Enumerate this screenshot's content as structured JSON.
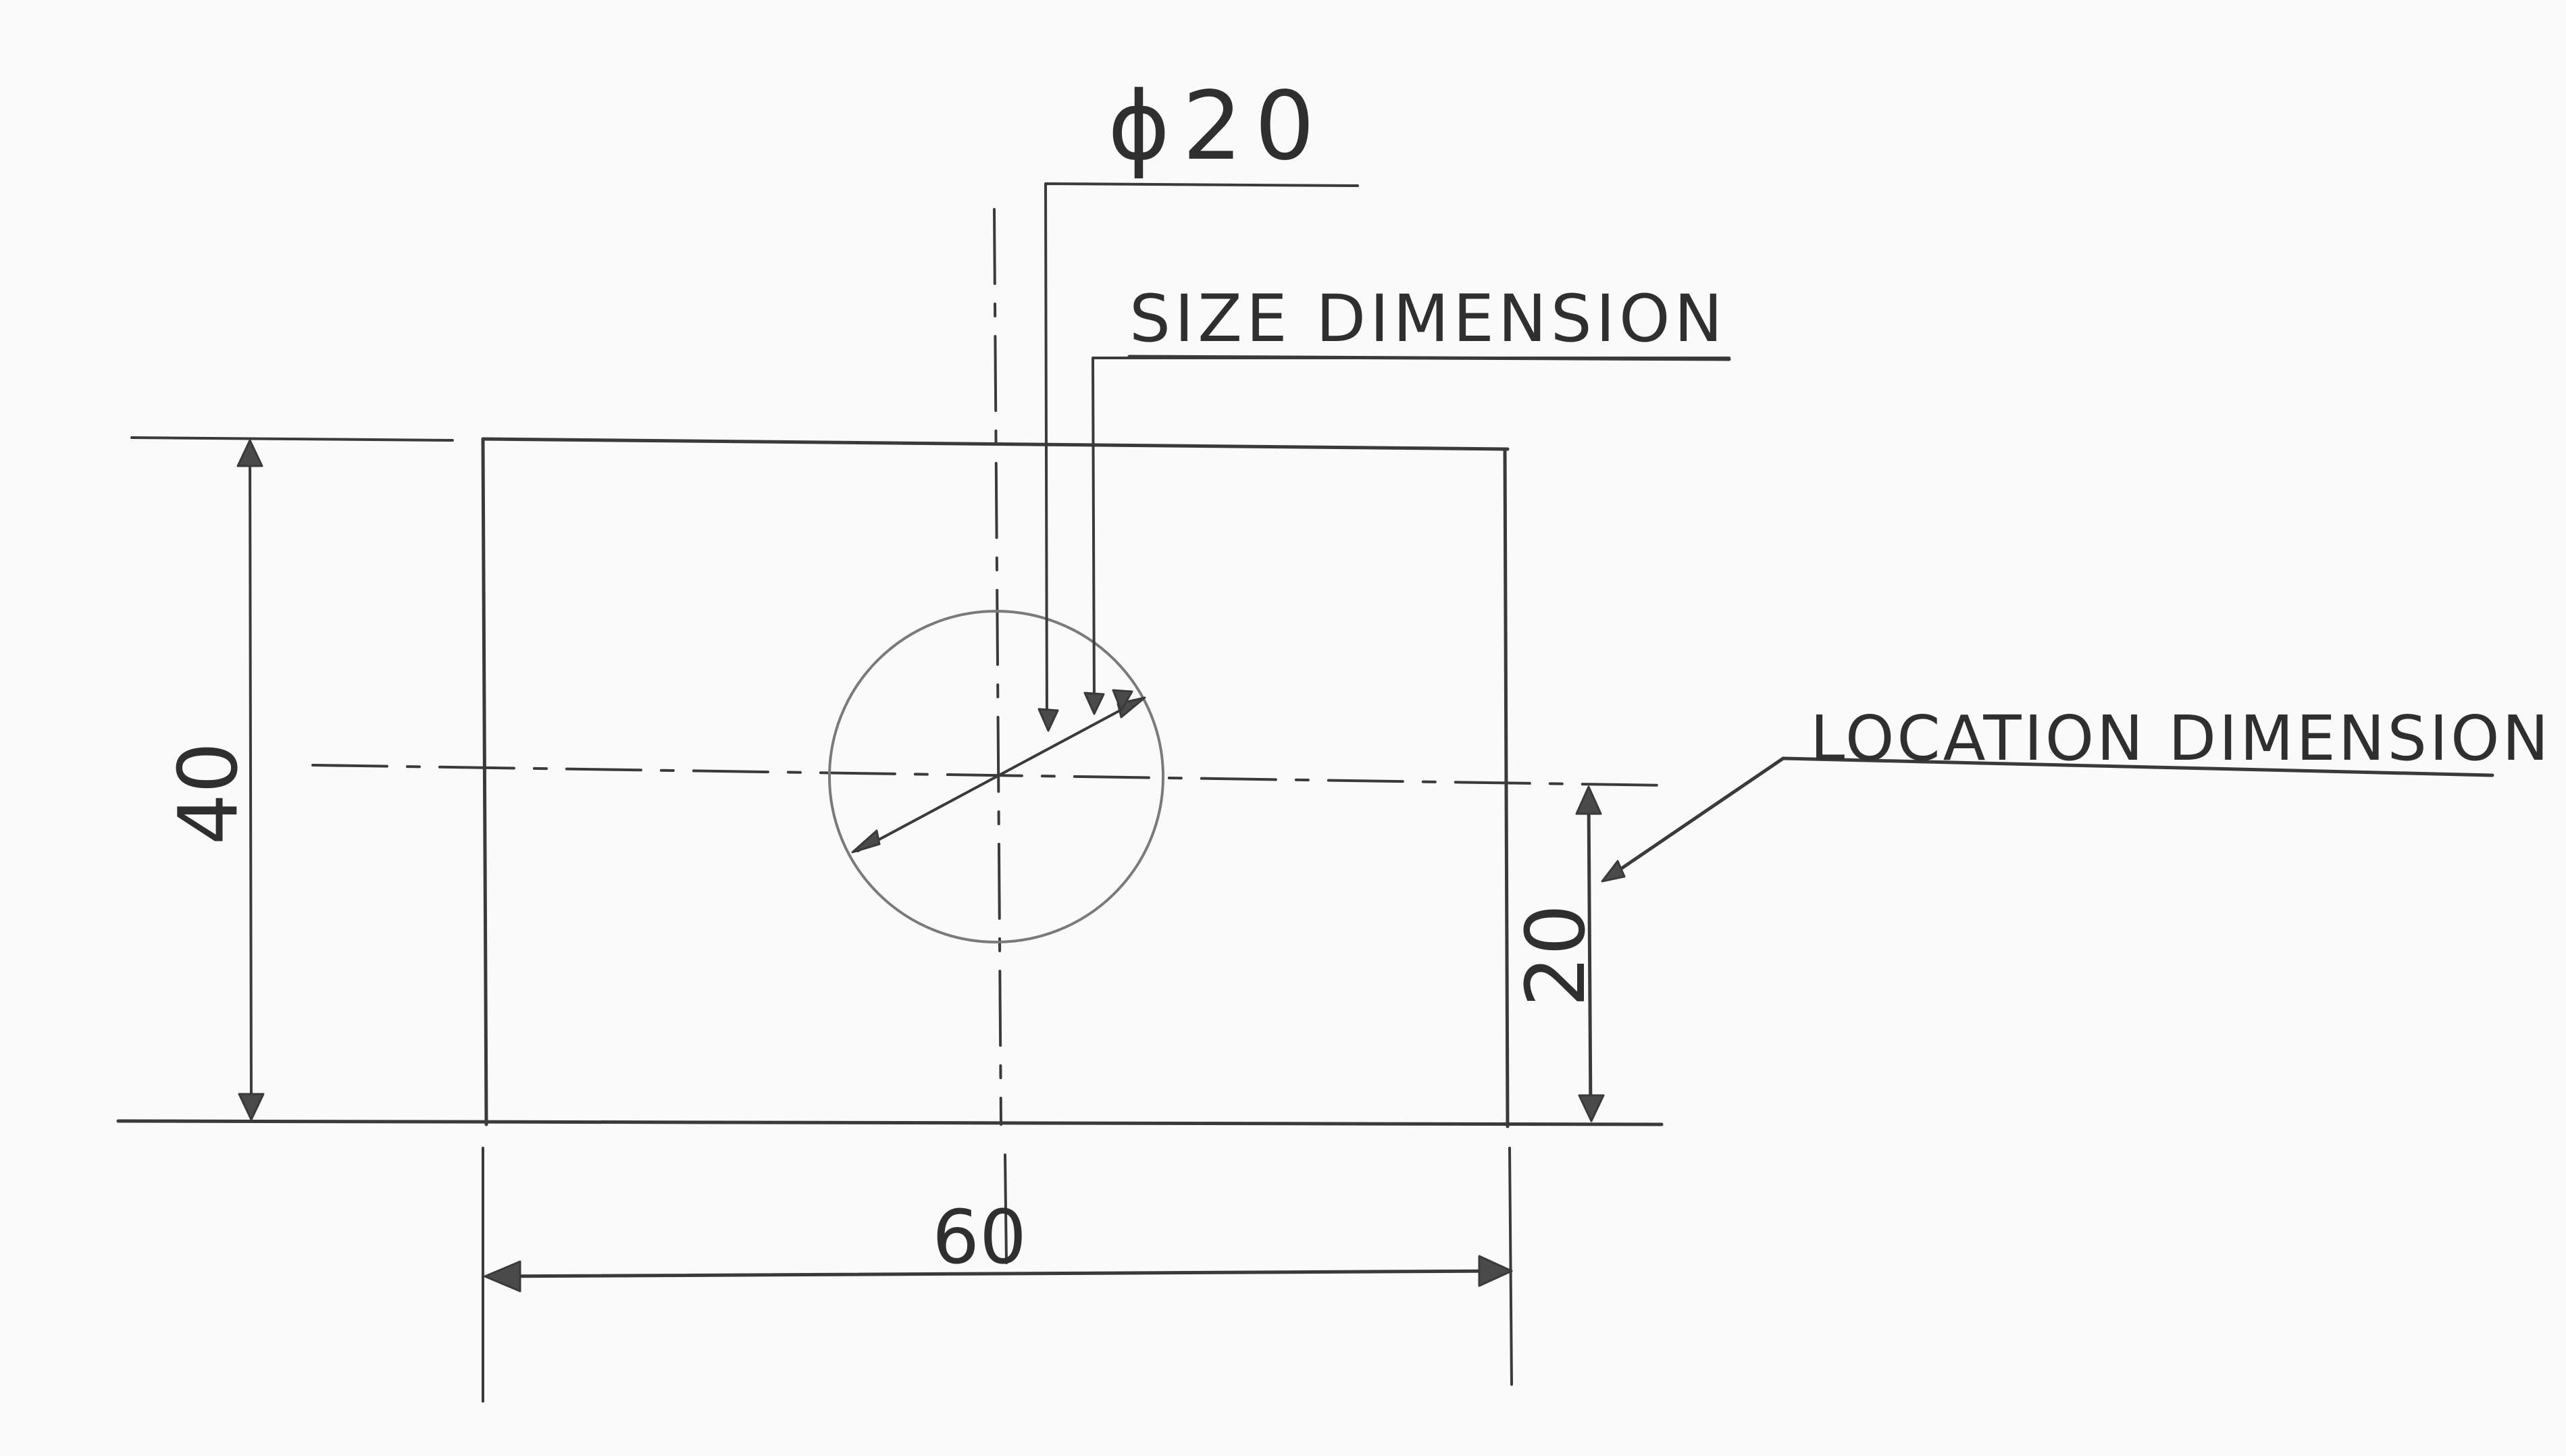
{
  "labels": {
    "diameter": "ϕ20",
    "size_callout": "SIZE DIMENSION",
    "location_callout": "LOCATION DIMENSION",
    "height": "40",
    "width": "60",
    "hole_location": "20"
  }
}
